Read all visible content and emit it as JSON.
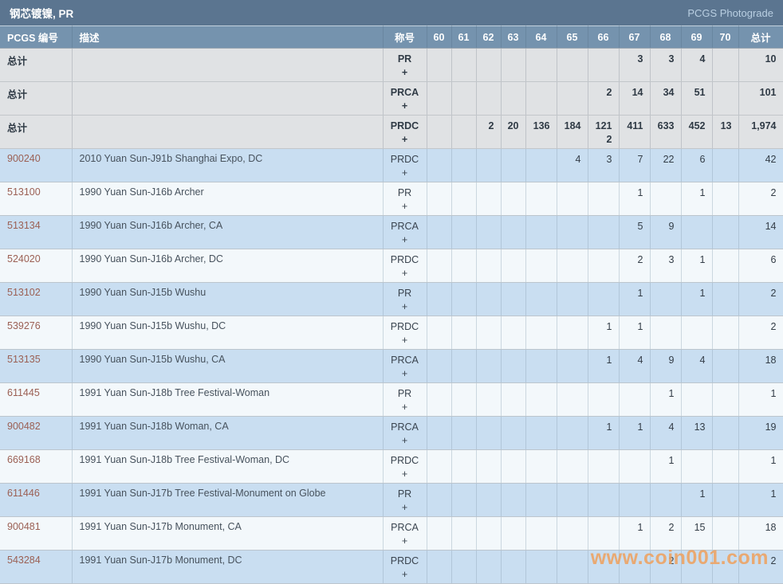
{
  "title_bar": {
    "title": "钢芯镀镍, PR",
    "photograde_link": "PCGS Photograde"
  },
  "table": {
    "headers": {
      "pcgs_no": "PCGS 编号",
      "description": "描述",
      "designation": "称号",
      "grades": [
        "60",
        "61",
        "62",
        "63",
        "64",
        "65",
        "66",
        "67",
        "68",
        "69",
        "70"
      ],
      "total": "总计"
    },
    "plus_sign": "+",
    "rows": [
      {
        "kind": "total",
        "pcgs": "总计",
        "desc": "",
        "designation": "PR",
        "grades": {
          "67": "3",
          "68": "3",
          "69": "4"
        },
        "plus_grades": {},
        "total": "10"
      },
      {
        "kind": "total",
        "pcgs": "总计",
        "desc": "",
        "designation": "PRCA",
        "grades": {
          "66": "2",
          "67": "14",
          "68": "34",
          "69": "51"
        },
        "plus_grades": {},
        "total": "101"
      },
      {
        "kind": "total",
        "pcgs": "总计",
        "desc": "",
        "designation": "PRDC",
        "grades": {
          "62": "2",
          "63": "20",
          "64": "136",
          "65": "184",
          "66": "121",
          "67": "411",
          "68": "633",
          "69": "452",
          "70": "13"
        },
        "plus_grades": {
          "66": "2"
        },
        "total": "1,974"
      },
      {
        "kind": "coin",
        "pcgs": "900240",
        "desc": "2010 Yuan Sun-J91b Shanghai Expo, DC",
        "designation": "PRDC",
        "grades": {
          "65": "4",
          "66": "3",
          "67": "7",
          "68": "22",
          "69": "6"
        },
        "plus_grades": {},
        "total": "42"
      },
      {
        "kind": "coin",
        "pcgs": "513100",
        "desc": "1990 Yuan Sun-J16b Archer",
        "designation": "PR",
        "grades": {
          "67": "1",
          "69": "1"
        },
        "plus_grades": {},
        "total": "2"
      },
      {
        "kind": "coin",
        "pcgs": "513134",
        "desc": "1990 Yuan Sun-J16b Archer, CA",
        "designation": "PRCA",
        "grades": {
          "67": "5",
          "68": "9"
        },
        "plus_grades": {},
        "total": "14"
      },
      {
        "kind": "coin",
        "pcgs": "524020",
        "desc": "1990 Yuan Sun-J16b Archer, DC",
        "designation": "PRDC",
        "grades": {
          "67": "2",
          "68": "3",
          "69": "1"
        },
        "plus_grades": {},
        "total": "6"
      },
      {
        "kind": "coin",
        "pcgs": "513102",
        "desc": "1990 Yuan Sun-J15b Wushu",
        "designation": "PR",
        "grades": {
          "67": "1",
          "69": "1"
        },
        "plus_grades": {},
        "total": "2"
      },
      {
        "kind": "coin",
        "pcgs": "539276",
        "desc": "1990 Yuan Sun-J15b Wushu, DC",
        "designation": "PRDC",
        "grades": {
          "66": "1",
          "67": "1"
        },
        "plus_grades": {},
        "total": "2"
      },
      {
        "kind": "coin",
        "pcgs": "513135",
        "desc": "1990 Yuan Sun-J15b Wushu, CA",
        "designation": "PRCA",
        "grades": {
          "66": "1",
          "67": "4",
          "68": "9",
          "69": "4"
        },
        "plus_grades": {},
        "total": "18"
      },
      {
        "kind": "coin",
        "pcgs": "611445",
        "desc": "1991 Yuan Sun-J18b Tree Festival-Woman",
        "designation": "PR",
        "grades": {
          "68": "1"
        },
        "plus_grades": {},
        "total": "1"
      },
      {
        "kind": "coin",
        "pcgs": "900482",
        "desc": "1991 Yuan Sun-J18b Woman, CA",
        "designation": "PRCA",
        "grades": {
          "66": "1",
          "67": "1",
          "68": "4",
          "69": "13"
        },
        "plus_grades": {},
        "total": "19"
      },
      {
        "kind": "coin",
        "pcgs": "669168",
        "desc": "1991 Yuan Sun-J18b Tree Festival-Woman, DC",
        "designation": "PRDC",
        "grades": {
          "68": "1"
        },
        "plus_grades": {},
        "total": "1"
      },
      {
        "kind": "coin",
        "pcgs": "611446",
        "desc": "1991 Yuan Sun-J17b Tree Festival-Monument on Globe",
        "designation": "PR",
        "grades": {
          "69": "1"
        },
        "plus_grades": {},
        "total": "1"
      },
      {
        "kind": "coin",
        "pcgs": "900481",
        "desc": "1991 Yuan Sun-J17b Monument, CA",
        "designation": "PRCA",
        "grades": {
          "67": "1",
          "68": "2",
          "69": "15"
        },
        "plus_grades": {},
        "total": "18"
      },
      {
        "kind": "coin",
        "pcgs": "543284",
        "desc": "1991 Yuan Sun-J17b Monument, DC",
        "designation": "PRDC",
        "grades": {
          "68": "2"
        },
        "plus_grades": {},
        "total": "2"
      }
    ]
  },
  "watermark": "www.coin001.com",
  "colors": {
    "titlebar_bg": "#5b7590",
    "header_bg": "#7593ae",
    "total_row_bg": "#e0e2e4",
    "row_blue_bg": "#c9def1",
    "row_white_bg": "#f3f8fb",
    "pcgs_link": "#9b6054",
    "photograde_link": "#b9cfe2",
    "watermark_orange": "#eea05c"
  }
}
